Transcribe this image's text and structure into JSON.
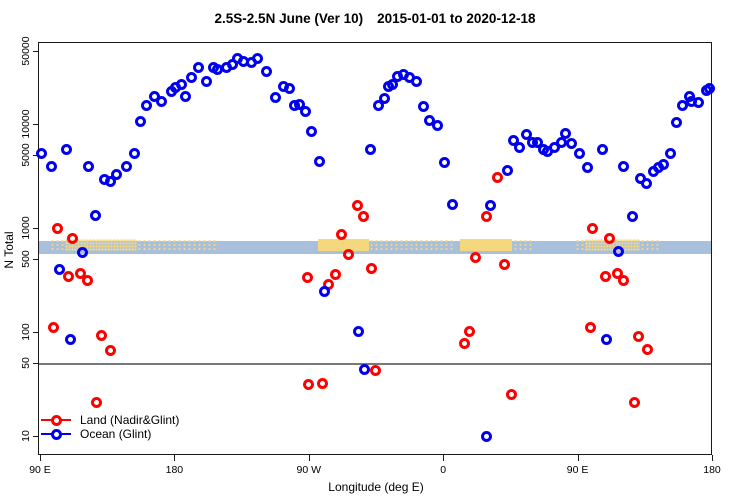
{
  "title": {
    "left": "2.5S-2.5N June (Ver 10)",
    "right": "2015-01-01 to 2020-12-18"
  },
  "chart_data": {
    "type": "scatter",
    "title": "2.5S-2.5N June (Ver 10)  2015-01-01 to 2020-12-18",
    "xlabel": "Longitude (deg E)",
    "ylabel": "N Total",
    "y_scale": "log",
    "grid": false,
    "legend_position": "bottom-left-inside",
    "x_range": [
      90,
      540
    ],
    "y_range": [
      6,
      60000
    ],
    "x_ticks": [
      {
        "lon": 90,
        "label": "90 E"
      },
      {
        "lon": 180,
        "label": "180"
      },
      {
        "lon": 270,
        "label": "90 W"
      },
      {
        "lon": 360,
        "label": "0"
      },
      {
        "lon": 450,
        "label": "90 E"
      },
      {
        "lon": 540,
        "label": "180"
      }
    ],
    "y_ticks": [
      {
        "v": 10,
        "label": "10"
      },
      {
        "v": 50,
        "label": "50"
      },
      {
        "v": 100,
        "label": "100"
      },
      {
        "v": 500,
        "label": "500"
      },
      {
        "v": 1000,
        "label": "1000"
      },
      {
        "v": 5000,
        "label": "5000"
      },
      {
        "v": 10000,
        "label": "10000"
      },
      {
        "v": 50000,
        "label": "50000"
      }
    ],
    "reference": {
      "gray_line_value": 50,
      "band": {
        "from": 565,
        "to": 750,
        "color": "#a9c0dd"
      },
      "orange_color": "#f5d77e",
      "orange_band": {
        "from": 600,
        "to": 790
      },
      "orange_patches": [
        {
          "from": 97,
          "to": 107,
          "style": "sparse"
        },
        {
          "from": 107,
          "to": 121,
          "style": "dense"
        },
        {
          "from": 121,
          "to": 155,
          "style": "dense"
        },
        {
          "from": 155,
          "to": 210,
          "style": "sparse"
        },
        {
          "from": 276,
          "to": 310,
          "style": "solid"
        },
        {
          "from": 310,
          "to": 367,
          "style": "sparse"
        },
        {
          "from": 371,
          "to": 406,
          "style": "solid"
        },
        {
          "from": 407,
          "to": 420,
          "style": "sparse"
        },
        {
          "from": 448,
          "to": 455,
          "style": "sparse"
        },
        {
          "from": 455,
          "to": 492,
          "style": "dense"
        },
        {
          "from": 492,
          "to": 505,
          "style": "sparse"
        }
      ]
    },
    "series": [
      {
        "name": "Land (Nadir&Glint)",
        "color": "#ff0000",
        "marker": "open-circle",
        "points": [
          [
            99,
            111
          ],
          [
            101.5,
            1000
          ],
          [
            109,
            345
          ],
          [
            111.5,
            800
          ],
          [
            117,
            365
          ],
          [
            121.5,
            310
          ],
          [
            127.5,
            21
          ],
          [
            131.5,
            93
          ],
          [
            137.5,
            67
          ],
          [
            269,
            333
          ],
          [
            270,
            31
          ],
          [
            279.5,
            32
          ],
          [
            283,
            288
          ],
          [
            288,
            358
          ],
          [
            292,
            870
          ],
          [
            296.5,
            560
          ],
          [
            302.5,
            1640
          ],
          [
            306.5,
            1280
          ],
          [
            312,
            406
          ],
          [
            314.5,
            43
          ],
          [
            374,
            78
          ],
          [
            377.5,
            102
          ],
          [
            381.5,
            520
          ],
          [
            389,
            1300
          ],
          [
            396.5,
            3050
          ],
          [
            401,
            450
          ],
          [
            405.5,
            25
          ],
          [
            458.5,
            111
          ],
          [
            460,
            1000
          ],
          [
            468.5,
            345
          ],
          [
            471.5,
            800
          ],
          [
            476.5,
            365
          ],
          [
            481,
            310
          ],
          [
            488,
            21
          ],
          [
            491,
            91
          ],
          [
            497,
            68
          ]
        ]
      },
      {
        "name": "Ocean (Glint)",
        "color": "#0000ee",
        "marker": "open-circle",
        "points": [
          [
            91,
            5200
          ],
          [
            98,
            3900
          ],
          [
            103,
            400
          ],
          [
            107.5,
            5650
          ],
          [
            110.5,
            85
          ],
          [
            118.5,
            580
          ],
          [
            122.5,
            3930
          ],
          [
            127,
            1330
          ],
          [
            133,
            2950
          ],
          [
            137,
            2800
          ],
          [
            141,
            3300
          ],
          [
            148,
            3900
          ],
          [
            153,
            5200
          ],
          [
            157.5,
            10600
          ],
          [
            161,
            14900
          ],
          [
            167,
            18200
          ],
          [
            171.5,
            16400
          ],
          [
            178,
            20500
          ],
          [
            181,
            22500
          ],
          [
            185,
            24000
          ],
          [
            187.5,
            18200
          ],
          [
            191.5,
            28000
          ],
          [
            196,
            34700
          ],
          [
            201.5,
            25600
          ],
          [
            206.5,
            35200
          ],
          [
            209,
            33400
          ],
          [
            215,
            35200
          ],
          [
            219,
            37300
          ],
          [
            222.5,
            42500
          ],
          [
            226.5,
            40000
          ],
          [
            231.5,
            38700
          ],
          [
            235.5,
            42200
          ],
          [
            242,
            31800
          ],
          [
            248,
            18000
          ],
          [
            253,
            22800
          ],
          [
            257,
            21900
          ],
          [
            260.5,
            15200
          ],
          [
            263.5,
            15300
          ],
          [
            268,
            13100
          ],
          [
            271.5,
            8500
          ],
          [
            277,
            4400
          ],
          [
            280.5,
            244
          ],
          [
            303.5,
            101
          ],
          [
            307.5,
            44
          ],
          [
            311.5,
            5650
          ],
          [
            317,
            14900
          ],
          [
            320.5,
            17700
          ],
          [
            323.5,
            22800
          ],
          [
            326,
            23900
          ],
          [
            329.5,
            28400
          ],
          [
            333.5,
            29800
          ],
          [
            337.5,
            28100
          ],
          [
            342,
            25600
          ],
          [
            346.5,
            14600
          ],
          [
            351,
            10900
          ],
          [
            356,
            9600
          ],
          [
            361,
            4300
          ],
          [
            366.5,
            1700
          ],
          [
            389,
            10
          ],
          [
            392,
            1650
          ],
          [
            403,
            3550
          ],
          [
            407,
            6900
          ],
          [
            411,
            6000
          ],
          [
            415.5,
            7900
          ],
          [
            419.5,
            6700
          ],
          [
            423,
            6570
          ],
          [
            427,
            5650
          ],
          [
            430,
            5500
          ],
          [
            434.5,
            5900
          ],
          [
            439,
            6700
          ],
          [
            442,
            8100
          ],
          [
            446,
            6500
          ],
          [
            451.5,
            5200
          ],
          [
            456.5,
            3800
          ],
          [
            467,
            5650
          ],
          [
            469.5,
            85
          ],
          [
            477.5,
            590
          ],
          [
            481,
            3930
          ],
          [
            486.5,
            1300
          ],
          [
            492,
            3000
          ],
          [
            496,
            2700
          ],
          [
            500.5,
            3480
          ],
          [
            504,
            3820
          ],
          [
            507.5,
            4100
          ],
          [
            512,
            5260
          ],
          [
            516,
            10300
          ],
          [
            520,
            14900
          ],
          [
            525,
            18200
          ],
          [
            526.5,
            16400
          ],
          [
            531,
            16000
          ],
          [
            536,
            21000
          ],
          [
            538,
            21900
          ]
        ]
      }
    ]
  }
}
